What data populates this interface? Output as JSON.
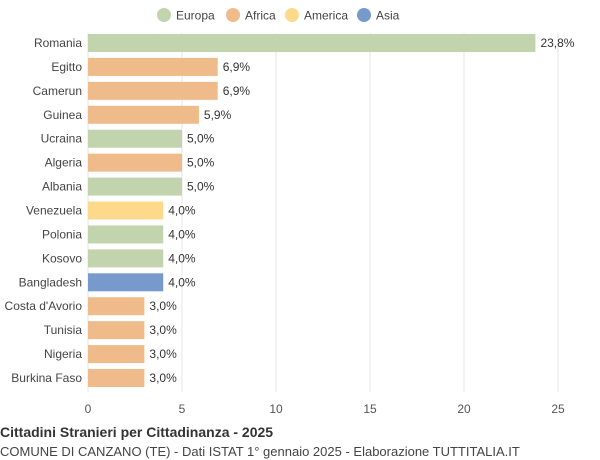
{
  "chart_data": {
    "type": "bar",
    "orientation": "horizontal",
    "legend_placement": "top-center",
    "grid": true,
    "categories": [
      "Romania",
      "Egitto",
      "Camerun",
      "Guinea",
      "Ucraina",
      "Algeria",
      "Albania",
      "Venezuela",
      "Polonia",
      "Kosovo",
      "Bangladesh",
      "Costa d'Avorio",
      "Tunisia",
      "Nigeria",
      "Burkina Faso"
    ],
    "values": [
      23.8,
      6.9,
      6.9,
      5.9,
      5.0,
      5.0,
      5.0,
      4.0,
      4.0,
      4.0,
      4.0,
      3.0,
      3.0,
      3.0,
      3.0
    ],
    "value_labels": [
      "23,8%",
      "6,9%",
      "6,9%",
      "5,9%",
      "5,0%",
      "5,0%",
      "5,0%",
      "4,0%",
      "4,0%",
      "4,0%",
      "4,0%",
      "3,0%",
      "3,0%",
      "3,0%",
      "3,0%"
    ],
    "groups": [
      "Europa",
      "Africa",
      "Africa",
      "Africa",
      "Europa",
      "Africa",
      "Europa",
      "America",
      "Europa",
      "Europa",
      "Asia",
      "Africa",
      "Africa",
      "Africa",
      "Africa"
    ],
    "legend": [
      {
        "name": "Europa",
        "color": "#c2d4ad"
      },
      {
        "name": "Africa",
        "color": "#f0bb8a"
      },
      {
        "name": "America",
        "color": "#fdd98b"
      },
      {
        "name": "Asia",
        "color": "#7799cc"
      }
    ],
    "xlim": [
      0,
      25
    ],
    "xticks": [
      0,
      5,
      10,
      15,
      20,
      25
    ],
    "title": "Cittadini Stranieri per Cittadinanza - 2025",
    "subtitle": "COMUNE DI CANZANO (TE) - Dati ISTAT 1° gennaio 2025 - Elaborazione TUTTITALIA.IT"
  }
}
